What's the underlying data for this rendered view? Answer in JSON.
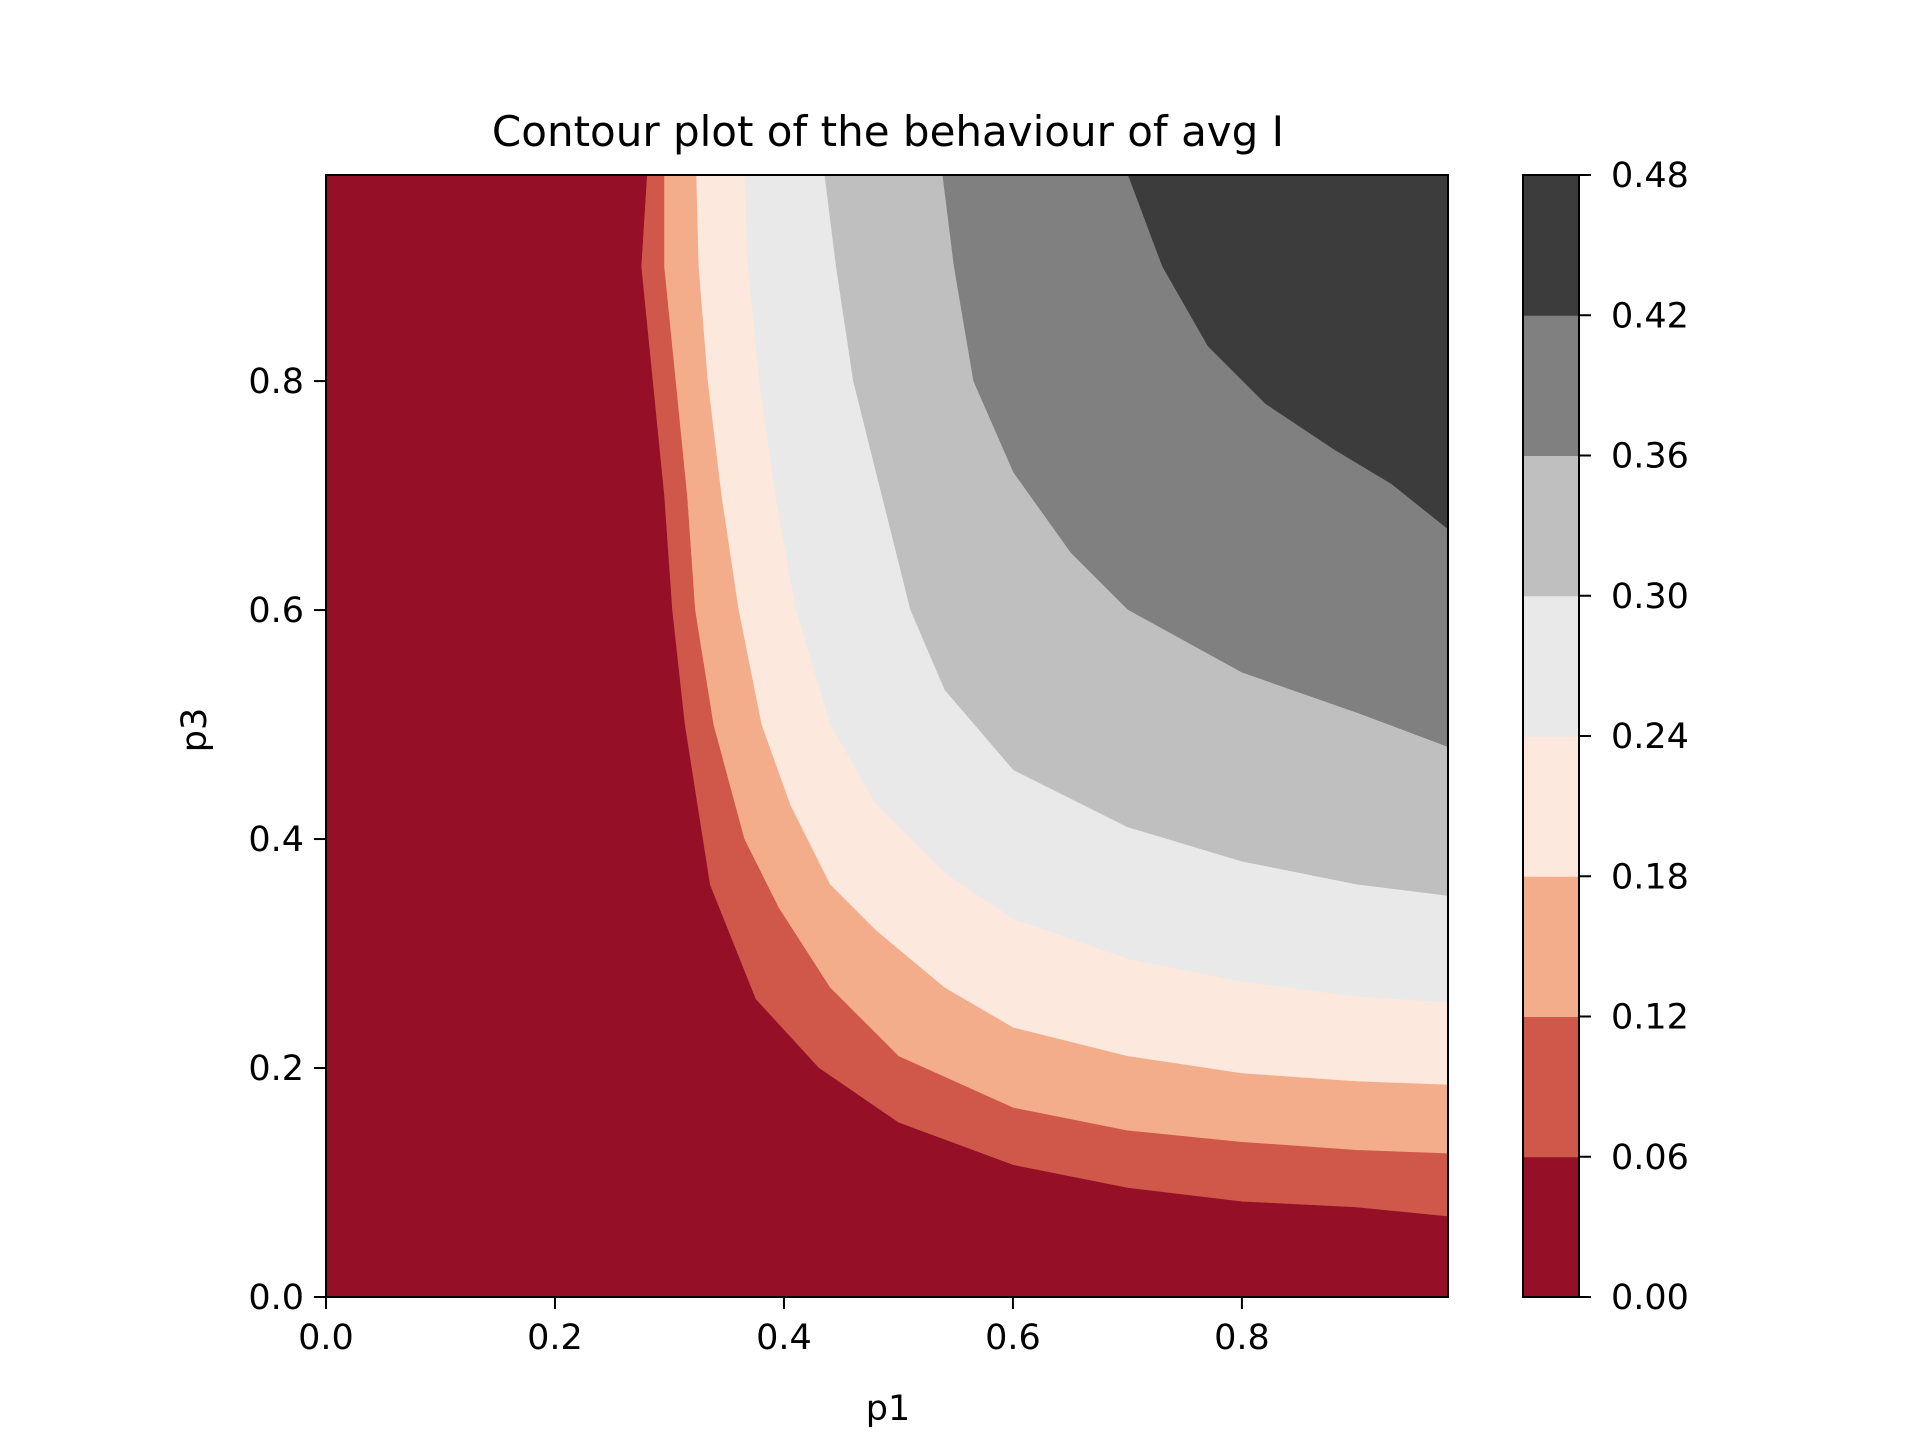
{
  "chart_data": {
    "type": "contour",
    "title": "Contour plot of the behaviour of avg I",
    "xlabel": "p1",
    "ylabel": "p3",
    "xlim": [
      0.0,
      0.98
    ],
    "ylim": [
      0.0,
      0.98
    ],
    "xticks": [
      0.0,
      0.2,
      0.4,
      0.6,
      0.8
    ],
    "yticks": [
      0.0,
      0.2,
      0.4,
      0.6,
      0.8
    ],
    "levels": [
      0.0,
      0.06,
      0.12,
      0.18,
      0.24,
      0.3,
      0.36,
      0.42,
      0.48
    ],
    "colorbar_ticks": [
      "0.00",
      "0.06",
      "0.12",
      "0.18",
      "0.24",
      "0.30",
      "0.36",
      "0.42",
      "0.48"
    ],
    "colors": [
      "#951027",
      "#d0584a",
      "#f4ad8b",
      "#fce8dd",
      "#e9e9e9",
      "#bfbfbf",
      "#808080",
      "#3c3c3c"
    ],
    "contour_lines": [
      {
        "level": 0.06,
        "points": [
          [
            0.28,
            0.98
          ],
          [
            0.275,
            0.9
          ],
          [
            0.285,
            0.8
          ],
          [
            0.295,
            0.7
          ],
          [
            0.302,
            0.6
          ],
          [
            0.313,
            0.5
          ],
          [
            0.335,
            0.36
          ],
          [
            0.375,
            0.26
          ],
          [
            0.43,
            0.2
          ],
          [
            0.5,
            0.152
          ],
          [
            0.6,
            0.115
          ],
          [
            0.7,
            0.095
          ],
          [
            0.8,
            0.083
          ],
          [
            0.9,
            0.078
          ],
          [
            0.98,
            0.07
          ]
        ]
      },
      {
        "level": 0.12,
        "points": [
          [
            0.295,
            0.98
          ],
          [
            0.295,
            0.9
          ],
          [
            0.305,
            0.8
          ],
          [
            0.315,
            0.7
          ],
          [
            0.322,
            0.6
          ],
          [
            0.338,
            0.5
          ],
          [
            0.365,
            0.4
          ],
          [
            0.395,
            0.34
          ],
          [
            0.44,
            0.27
          ],
          [
            0.5,
            0.21
          ],
          [
            0.6,
            0.165
          ],
          [
            0.7,
            0.145
          ],
          [
            0.8,
            0.135
          ],
          [
            0.9,
            0.128
          ],
          [
            0.98,
            0.125
          ]
        ]
      },
      {
        "level": 0.18,
        "points": [
          [
            0.323,
            0.98
          ],
          [
            0.325,
            0.9
          ],
          [
            0.333,
            0.8
          ],
          [
            0.345,
            0.7
          ],
          [
            0.36,
            0.6
          ],
          [
            0.38,
            0.5
          ],
          [
            0.405,
            0.43
          ],
          [
            0.44,
            0.36
          ],
          [
            0.48,
            0.32
          ],
          [
            0.54,
            0.27
          ],
          [
            0.6,
            0.235
          ],
          [
            0.7,
            0.21
          ],
          [
            0.8,
            0.195
          ],
          [
            0.9,
            0.188
          ],
          [
            0.98,
            0.185
          ]
        ]
      },
      {
        "level": 0.24,
        "points": [
          [
            0.365,
            0.98
          ],
          [
            0.368,
            0.9
          ],
          [
            0.378,
            0.8
          ],
          [
            0.392,
            0.7
          ],
          [
            0.41,
            0.6
          ],
          [
            0.44,
            0.5
          ],
          [
            0.48,
            0.43
          ],
          [
            0.54,
            0.37
          ],
          [
            0.6,
            0.33
          ],
          [
            0.7,
            0.295
          ],
          [
            0.8,
            0.275
          ],
          [
            0.9,
            0.262
          ],
          [
            0.98,
            0.257
          ]
        ]
      },
      {
        "level": 0.3,
        "points": [
          [
            0.435,
            0.98
          ],
          [
            0.445,
            0.9
          ],
          [
            0.46,
            0.8
          ],
          [
            0.485,
            0.7
          ],
          [
            0.51,
            0.6
          ],
          [
            0.54,
            0.53
          ],
          [
            0.6,
            0.46
          ],
          [
            0.7,
            0.41
          ],
          [
            0.8,
            0.38
          ],
          [
            0.9,
            0.36
          ],
          [
            0.98,
            0.35
          ]
        ]
      },
      {
        "level": 0.36,
        "points": [
          [
            0.538,
            0.98
          ],
          [
            0.548,
            0.9
          ],
          [
            0.565,
            0.8
          ],
          [
            0.6,
            0.72
          ],
          [
            0.65,
            0.65
          ],
          [
            0.7,
            0.6
          ],
          [
            0.8,
            0.545
          ],
          [
            0.9,
            0.51
          ],
          [
            0.98,
            0.48
          ]
        ]
      },
      {
        "level": 0.42,
        "points": [
          [
            0.7,
            0.98
          ],
          [
            0.73,
            0.9
          ],
          [
            0.77,
            0.83
          ],
          [
            0.82,
            0.78
          ],
          [
            0.88,
            0.74
          ],
          [
            0.93,
            0.71
          ],
          [
            0.98,
            0.67
          ]
        ]
      }
    ]
  }
}
